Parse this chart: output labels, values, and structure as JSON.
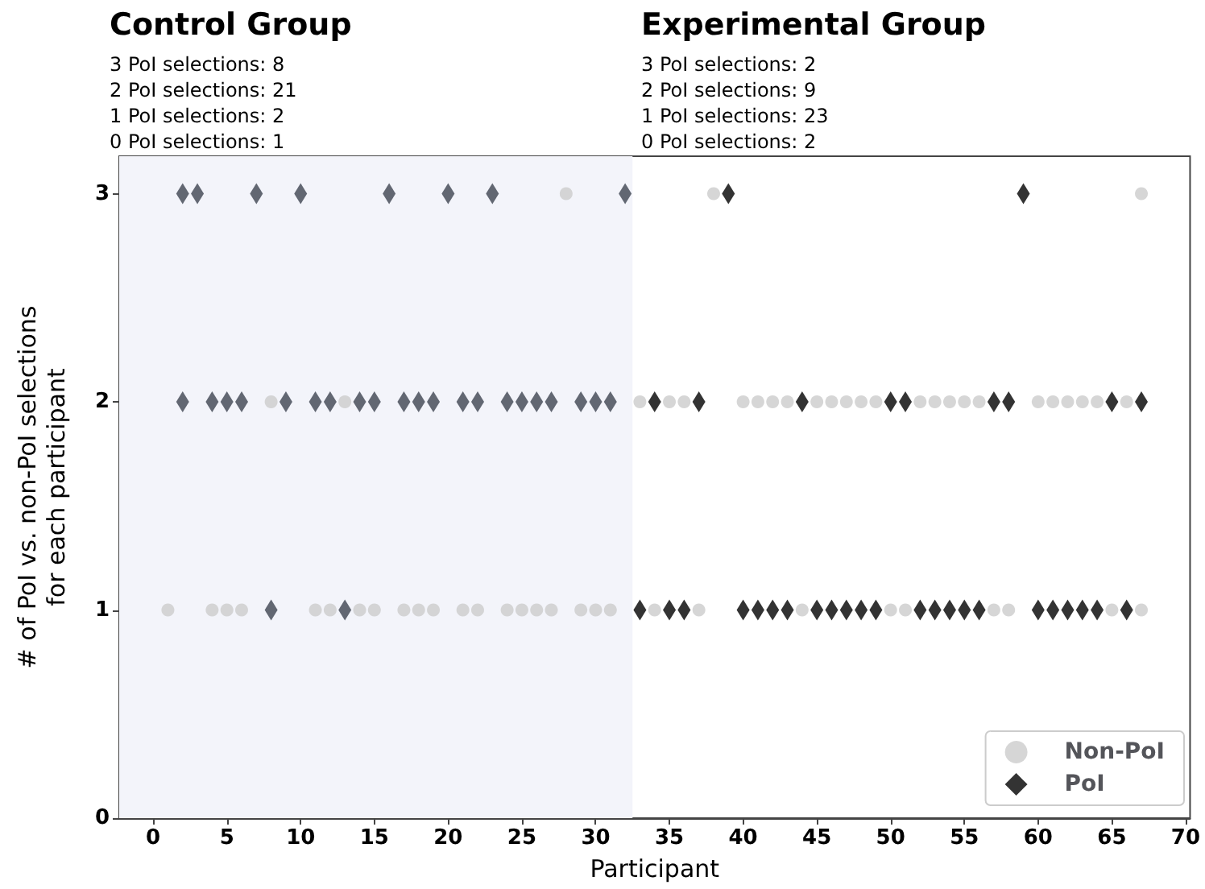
{
  "chart_data": {
    "type": "scatter",
    "xlabel": "Participant",
    "ylabel": "# of PoI vs. non-PoI selections\nfor each participant",
    "annotations": [
      "Control Group",
      "3 PoI selections: 8",
      "2 PoI selections: 21",
      "1 PoI selections: 2",
      "0 PoI selections: 1",
      "Experimental Group",
      "3 PoI selections: 2",
      "2 PoI selections: 9",
      "1 PoI selections: 23",
      "0 PoI selections: 2"
    ],
    "xlim": [
      -2.3,
      70.3
    ],
    "xticks": [
      0,
      5,
      10,
      15,
      20,
      25,
      30,
      35,
      40,
      45,
      50,
      55,
      60,
      65,
      70
    ],
    "ylim": [
      0,
      3.18
    ],
    "yticks": [
      0,
      1,
      2,
      3
    ],
    "grid": false,
    "legend": "bottom right",
    "bands": [
      {
        "axis": "x",
        "from": -2.3,
        "to": 32.5,
        "color": "#f3f4fa"
      }
    ],
    "series": [
      {
        "name": "Non-PoI",
        "color": "#cccccc",
        "marker": "circle",
        "x": [
          1,
          4,
          5,
          6,
          11,
          12,
          14,
          15,
          17,
          18,
          19,
          21,
          22,
          24,
          25,
          26,
          27,
          29,
          30,
          31,
          34,
          37,
          44,
          50,
          51,
          57,
          58,
          65,
          67,
          8,
          13,
          33,
          35,
          36,
          40,
          41,
          42,
          43,
          45,
          46,
          47,
          48,
          49,
          52,
          53,
          54,
          55,
          56,
          60,
          61,
          62,
          63,
          64,
          66,
          28,
          38,
          67
        ],
        "values": [
          1,
          1,
          1,
          1,
          1,
          1,
          1,
          1,
          1,
          1,
          1,
          1,
          1,
          1,
          1,
          1,
          1,
          1,
          1,
          1,
          1,
          1,
          1,
          1,
          1,
          1,
          1,
          1,
          1,
          2,
          2,
          2,
          2,
          2,
          2,
          2,
          2,
          2,
          2,
          2,
          2,
          2,
          2,
          2,
          2,
          2,
          2,
          2,
          2,
          2,
          2,
          2,
          2,
          2,
          3,
          3,
          3
        ]
      },
      {
        "name": "PoI",
        "color": "#000000",
        "marker": "diamond",
        "x": [
          8,
          13,
          33,
          35,
          36,
          40,
          41,
          42,
          43,
          45,
          46,
          47,
          48,
          49,
          52,
          53,
          54,
          55,
          56,
          60,
          61,
          62,
          63,
          64,
          66,
          2,
          4,
          5,
          6,
          9,
          11,
          12,
          14,
          15,
          17,
          18,
          19,
          21,
          22,
          24,
          25,
          26,
          27,
          29,
          30,
          31,
          34,
          37,
          44,
          50,
          51,
          57,
          58,
          65,
          67,
          2,
          3,
          7,
          10,
          16,
          20,
          23,
          32,
          39,
          59
        ],
        "values": [
          1,
          1,
          1,
          1,
          1,
          1,
          1,
          1,
          1,
          1,
          1,
          1,
          1,
          1,
          1,
          1,
          1,
          1,
          1,
          1,
          1,
          1,
          1,
          1,
          1,
          2,
          2,
          2,
          2,
          2,
          2,
          2,
          2,
          2,
          2,
          2,
          2,
          2,
          2,
          2,
          2,
          2,
          2,
          2,
          2,
          2,
          2,
          2,
          2,
          2,
          2,
          2,
          2,
          2,
          2,
          3,
          3,
          3,
          3,
          3,
          3,
          3,
          3,
          3,
          3
        ],
        "colors": [
          "#3d4350",
          "#3d4350",
          "#000000",
          "#000000",
          "#000000",
          "#000000",
          "#000000",
          "#000000",
          "#000000",
          "#000000",
          "#000000",
          "#000000",
          "#000000",
          "#000000",
          "#000000",
          "#000000",
          "#000000",
          "#000000",
          "#000000",
          "#000000",
          "#000000",
          "#000000",
          "#000000",
          "#000000",
          "#000000",
          "#3d4350",
          "#3d4350",
          "#3d4350",
          "#3d4350",
          "#3d4350",
          "#3d4350",
          "#3d4350",
          "#3d4350",
          "#3d4350",
          "#3d4350",
          "#3d4350",
          "#3d4350",
          "#3d4350",
          "#3d4350",
          "#3d4350",
          "#3d4350",
          "#3d4350",
          "#3d4350",
          "#3d4350",
          "#3d4350",
          "#3d4350",
          "#000000",
          "#000000",
          "#000000",
          "#000000",
          "#000000",
          "#000000",
          "#000000",
          "#000000",
          "#000000",
          "#3d4350",
          "#3d4350",
          "#3d4350",
          "#3d4350",
          "#3d4350",
          "#3d4350",
          "#3d4350",
          "#3d4350",
          "#000000",
          "#000000"
        ]
      }
    ]
  }
}
